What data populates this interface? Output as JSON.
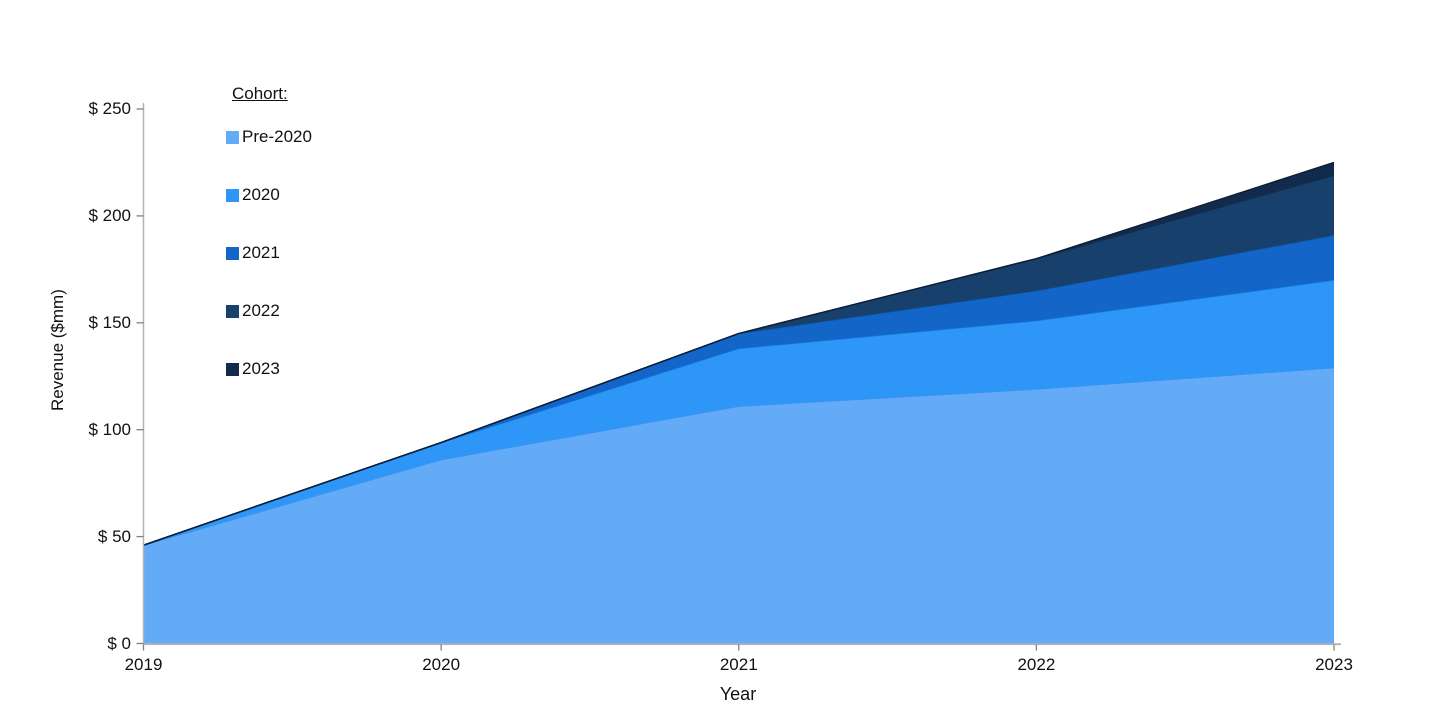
{
  "chart_data": {
    "type": "area",
    "stacked": true,
    "xlabel": "Year",
    "ylabel": "Revenue ($mm)",
    "categories": [
      "2019",
      "2020",
      "2021",
      "2022",
      "2023"
    ],
    "series": [
      {
        "name": "Pre-2020",
        "color": "#63ABF7",
        "edge": "#3f92ef",
        "values": [
          46,
          86,
          111,
          119,
          129
        ]
      },
      {
        "name": "2020",
        "color": "#2E96F7",
        "edge": "#147ee2",
        "values": [
          0,
          8,
          27,
          32,
          41
        ]
      },
      {
        "name": "2021",
        "color": "#1465C8",
        "edge": "#0f53a6",
        "values": [
          0,
          0,
          7,
          14,
          21
        ]
      },
      {
        "name": "2022",
        "color": "#17416C",
        "edge": "#102f50",
        "values": [
          0,
          0,
          0,
          15,
          28
        ]
      },
      {
        "name": "2023",
        "color": "#122B4C",
        "edge": "#0c1e36",
        "values": [
          0,
          0,
          0,
          0,
          6
        ]
      }
    ],
    "totals": [
      46,
      94,
      145,
      180,
      225
    ],
    "ylim": [
      0,
      250
    ],
    "y_ticks": [
      0,
      50,
      100,
      150,
      200,
      250
    ],
    "y_tick_labels": [
      "$ 0",
      "$ 50",
      "$ 100",
      "$ 150",
      "$ 200",
      "$ 250"
    ],
    "legend": {
      "title": "Cohort:",
      "position": "top-left-inside"
    },
    "grid": false,
    "axis_color": "#b3b3b3",
    "tick_color": "#808080"
  }
}
